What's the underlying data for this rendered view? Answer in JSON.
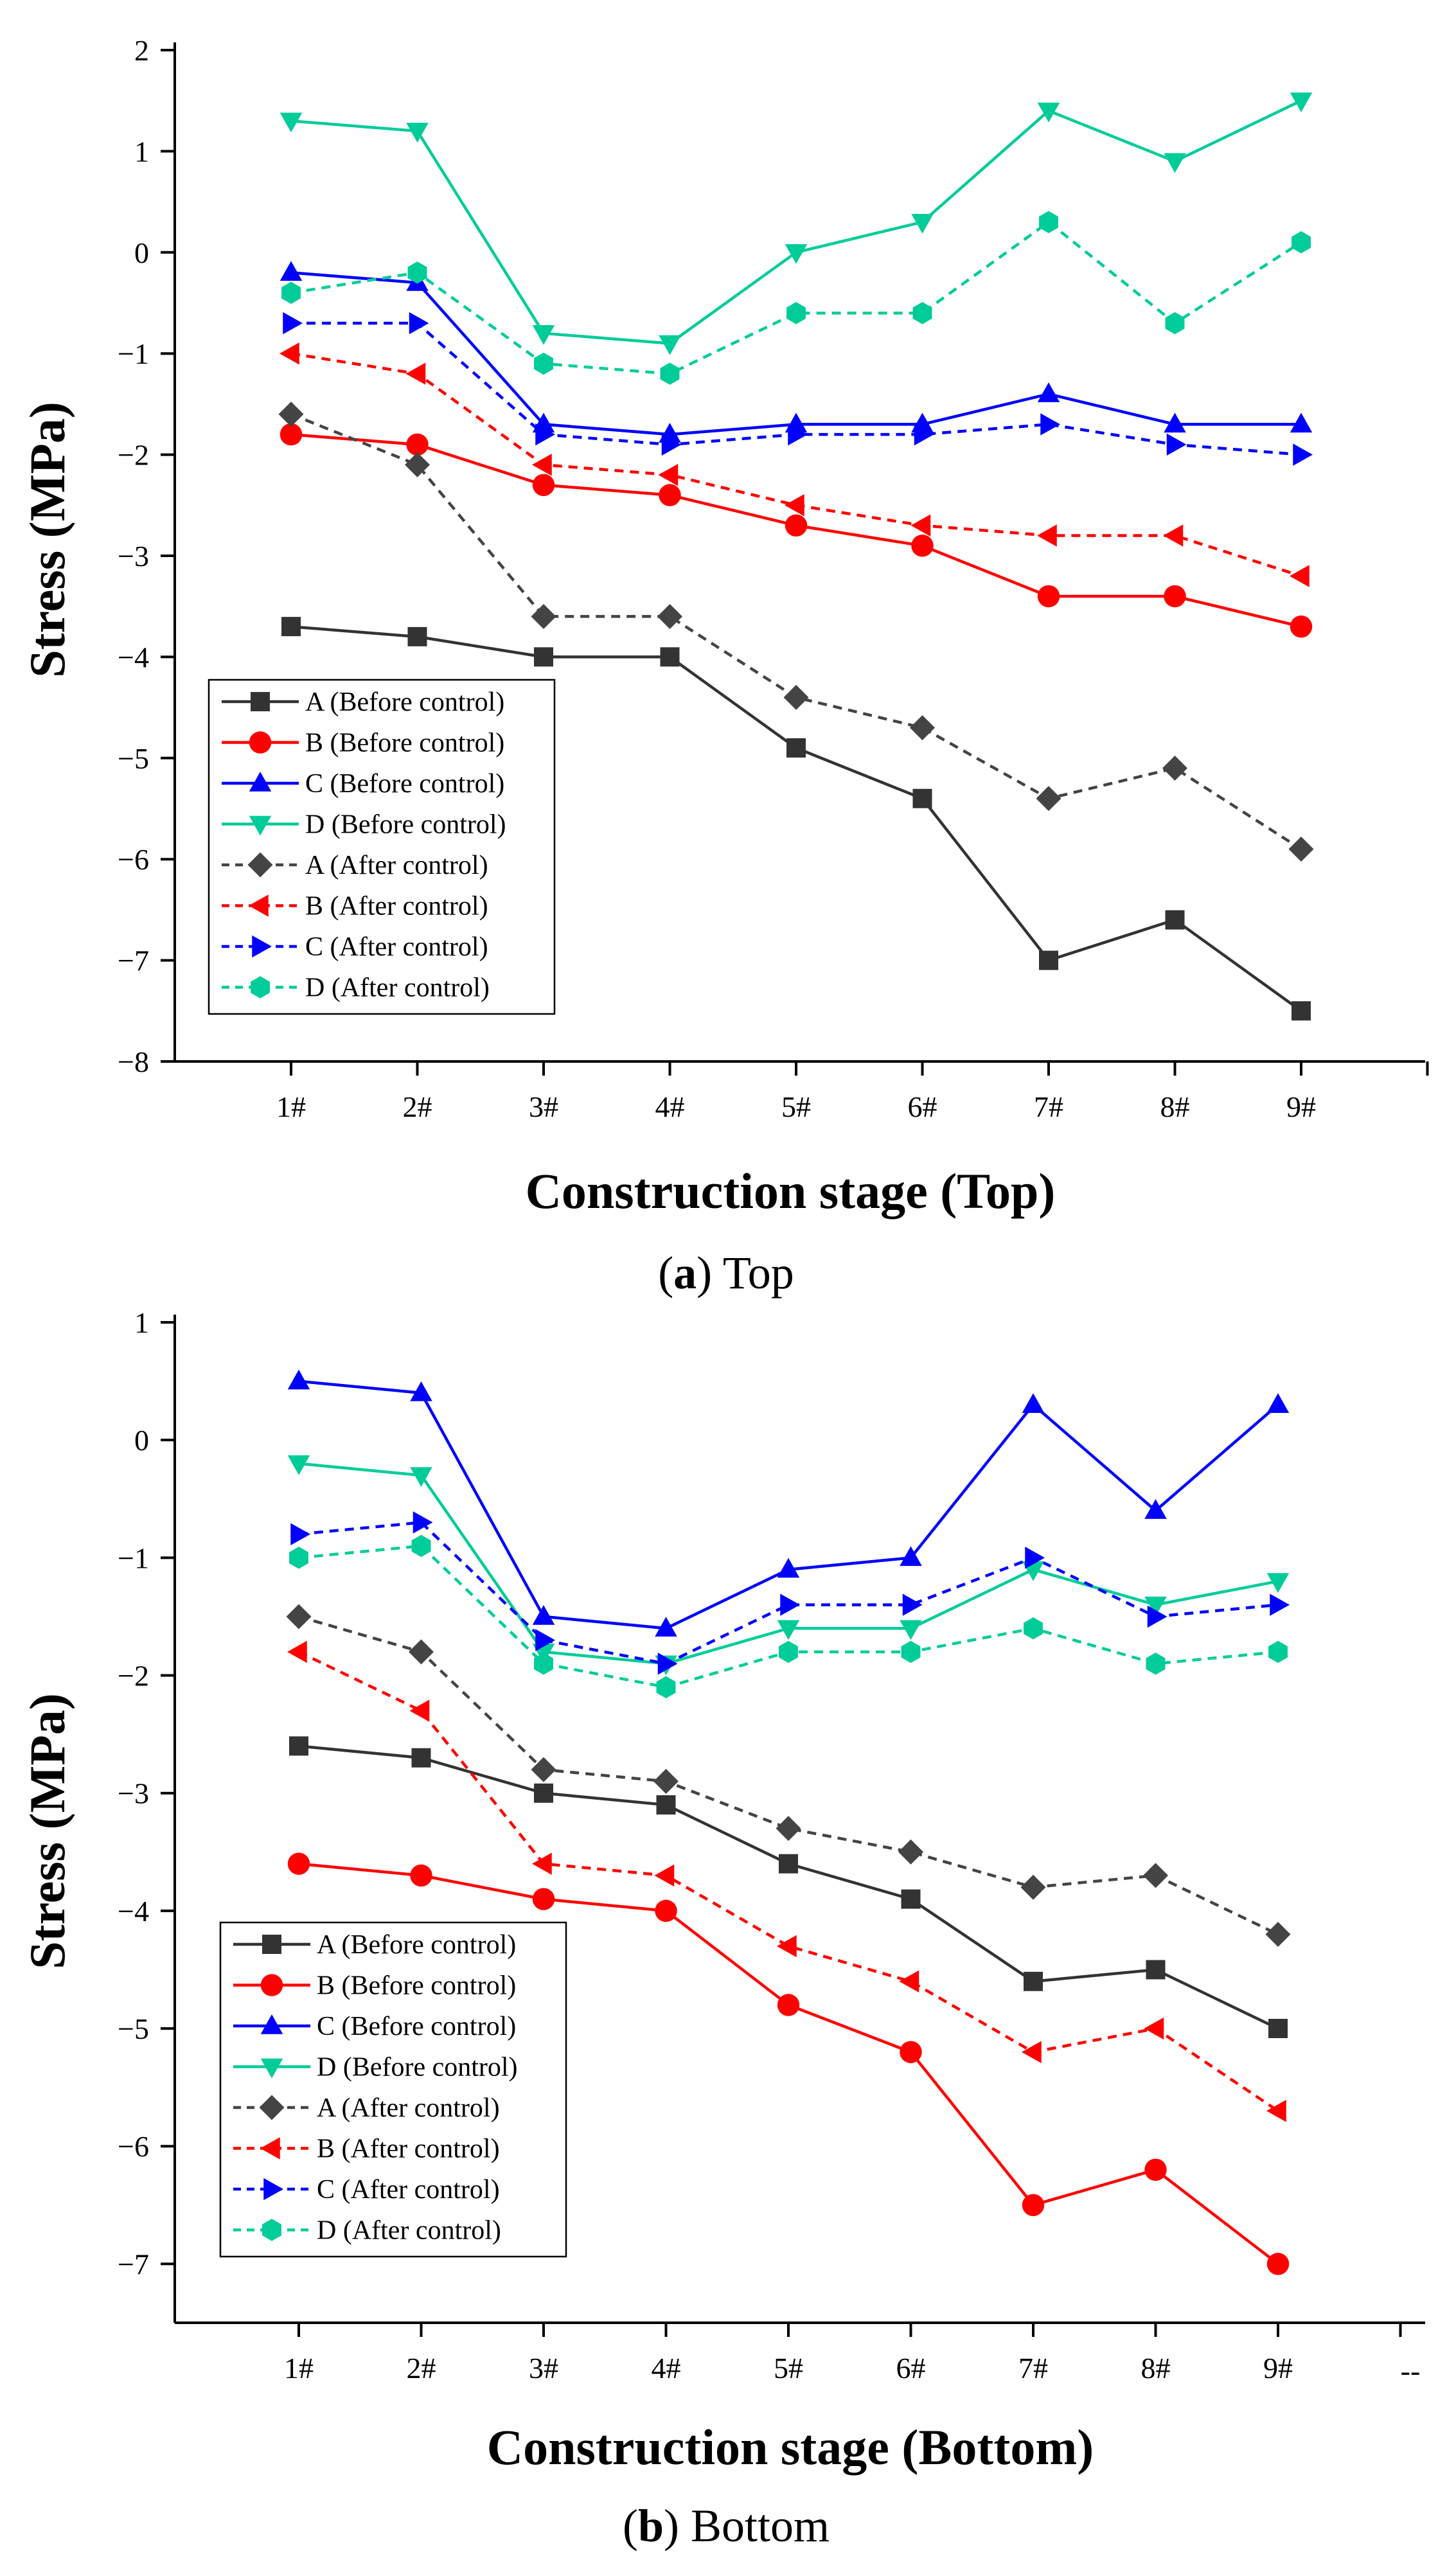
{
  "chart_data": [
    {
      "type": "line",
      "id": "top",
      "caption_letter": "a",
      "caption_text": " Top",
      "xlabel": "Construction stage (Top)",
      "ylabel": "Stress  (MPa)",
      "categories": [
        "1#",
        "2#",
        "3#",
        "4#",
        "5#",
        "6#",
        "7#",
        "8#",
        "9#"
      ],
      "ylim": [
        -8,
        2
      ],
      "yticks": [
        2,
        1,
        0,
        -1,
        -2,
        -3,
        -4,
        -5,
        -6,
        -7,
        -8
      ],
      "ytick_labels": [
        "2",
        "1",
        "0",
        "−1",
        "−2",
        "−3",
        "−4",
        "−5",
        "−6",
        "−7",
        "−8"
      ],
      "legend_position": "bottom-left",
      "series": [
        {
          "name": "A (Before control)",
          "color": "#333333",
          "dashed": false,
          "marker": "square",
          "values": [
            -3.7,
            -3.8,
            -4.0,
            -4.0,
            -4.9,
            -5.4,
            -7.0,
            -6.6,
            -7.5
          ]
        },
        {
          "name": "B (Before control)",
          "color": "#ff0000",
          "dashed": false,
          "marker": "circle",
          "values": [
            -1.8,
            -1.9,
            -2.3,
            -2.4,
            -2.7,
            -2.9,
            -3.4,
            -3.4,
            -3.7
          ]
        },
        {
          "name": "C (Before control)",
          "color": "#0000ff",
          "dashed": false,
          "marker": "triangle-up",
          "values": [
            -0.2,
            -0.3,
            -1.7,
            -1.8,
            -1.7,
            -1.7,
            -1.4,
            -1.7,
            -1.7
          ]
        },
        {
          "name": "D (Before control)",
          "color": "#00cc99",
          "dashed": false,
          "marker": "triangle-down",
          "values": [
            1.3,
            1.2,
            -0.8,
            -0.9,
            0.0,
            0.3,
            1.4,
            0.9,
            1.5
          ]
        },
        {
          "name": "A (After control)",
          "color": "#444444",
          "dashed": true,
          "marker": "diamond",
          "values": [
            -1.6,
            -2.1,
            -3.6,
            -3.6,
            -4.4,
            -4.7,
            -5.4,
            -5.1,
            -5.9
          ]
        },
        {
          "name": "B (After control)",
          "color": "#ff0000",
          "dashed": true,
          "marker": "triangle-left",
          "values": [
            -1.0,
            -1.2,
            -2.1,
            -2.2,
            -2.5,
            -2.7,
            -2.8,
            -2.8,
            -3.2
          ]
        },
        {
          "name": "C (After control)",
          "color": "#0000ff",
          "dashed": true,
          "marker": "triangle-right",
          "values": [
            -0.7,
            -0.7,
            -1.8,
            -1.9,
            -1.8,
            -1.8,
            -1.7,
            -1.9,
            -2.0
          ]
        },
        {
          "name": "D (After control)",
          "color": "#00cc99",
          "dashed": true,
          "marker": "hexagon",
          "values": [
            -0.4,
            -0.2,
            -1.1,
            -1.2,
            -0.6,
            -0.6,
            0.3,
            -0.7,
            0.1
          ]
        }
      ]
    },
    {
      "type": "line",
      "id": "bottom",
      "caption_letter": "b",
      "caption_text": " Bottom",
      "xlabel": "Construction stage (Bottom)",
      "ylabel": "Stress (MPa)",
      "categories": [
        "1#",
        "2#",
        "3#",
        "4#",
        "5#",
        "6#",
        "7#",
        "8#",
        "9#"
      ],
      "extra_label": "--",
      "ylim": [
        -7.5,
        1
      ],
      "yticks": [
        1,
        0,
        -1,
        -2,
        -3,
        -4,
        -5,
        -6,
        -7
      ],
      "ytick_labels": [
        "1",
        "0",
        "−1",
        "−2",
        "−3",
        "−4",
        "−5",
        "−6",
        "−7"
      ],
      "legend_position": "bottom-left",
      "series": [
        {
          "name": "A (Before control)",
          "color": "#333333",
          "dashed": false,
          "marker": "square",
          "values": [
            -2.6,
            -2.7,
            -3.0,
            -3.1,
            -3.6,
            -3.9,
            -4.6,
            -4.5,
            -5.0
          ]
        },
        {
          "name": "B (Before control)",
          "color": "#ff0000",
          "dashed": false,
          "marker": "circle",
          "values": [
            -3.6,
            -3.7,
            -3.9,
            -4.0,
            -4.8,
            -5.2,
            -6.5,
            -6.2,
            -7.0
          ]
        },
        {
          "name": "C (Before control)",
          "color": "#0000ff",
          "dashed": false,
          "marker": "triangle-up",
          "values": [
            0.5,
            0.4,
            -1.5,
            -1.6,
            -1.1,
            -1.0,
            0.3,
            -0.6,
            0.3
          ]
        },
        {
          "name": "D (Before control)",
          "color": "#00cc99",
          "dashed": false,
          "marker": "triangle-down",
          "values": [
            -0.2,
            -0.3,
            -1.8,
            -1.9,
            -1.6,
            -1.6,
            -1.1,
            -1.4,
            -1.2
          ]
        },
        {
          "name": "A (After control)",
          "color": "#444444",
          "dashed": true,
          "marker": "diamond",
          "values": [
            -1.5,
            -1.8,
            -2.8,
            -2.9,
            -3.3,
            -3.5,
            -3.8,
            -3.7,
            -4.2
          ]
        },
        {
          "name": "B (After control)",
          "color": "#ff0000",
          "dashed": true,
          "marker": "triangle-left",
          "values": [
            -1.8,
            -2.3,
            -3.6,
            -3.7,
            -4.3,
            -4.6,
            -5.2,
            -5.0,
            -5.7
          ]
        },
        {
          "name": "C (After control)",
          "color": "#0000ff",
          "dashed": true,
          "marker": "triangle-right",
          "values": [
            -0.8,
            -0.7,
            -1.7,
            -1.9,
            -1.4,
            -1.4,
            -1.0,
            -1.5,
            -1.4
          ]
        },
        {
          "name": "D (After control)",
          "color": "#00cc99",
          "dashed": true,
          "marker": "hexagon",
          "values": [
            -1.0,
            -0.9,
            -1.9,
            -2.1,
            -1.8,
            -1.8,
            -1.6,
            -1.9,
            -1.8
          ]
        }
      ]
    }
  ]
}
